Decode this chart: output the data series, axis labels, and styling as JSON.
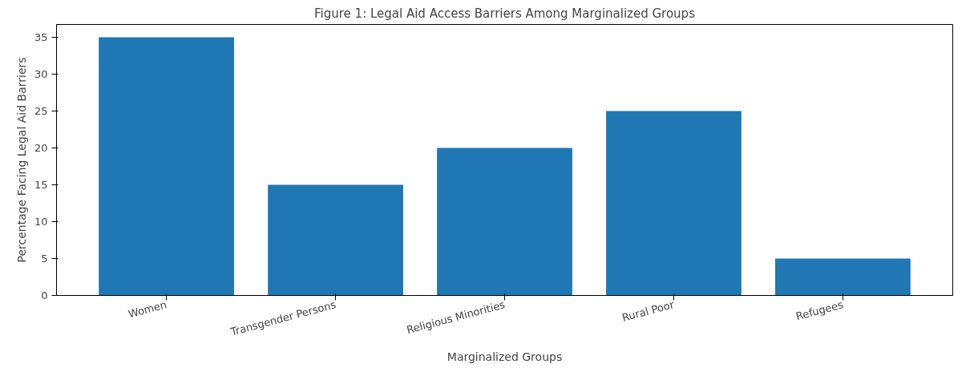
{
  "chart_data": {
    "type": "bar",
    "title": "Figure 1: Legal Aid Access Barriers Among Marginalized Groups",
    "xlabel": "Marginalized Groups",
    "ylabel": "Percentage Facing Legal Aid Barriers",
    "categories": [
      "Women",
      "Transgender Persons",
      "Religious Minorities",
      "Rural Poor",
      "Refugees"
    ],
    "values": [
      35,
      15,
      20,
      25,
      5
    ],
    "color": "#1f77b4",
    "ylim": [
      0,
      36.75
    ],
    "yticks": [
      0,
      5,
      10,
      15,
      20,
      25,
      30,
      35
    ],
    "grid": false
  }
}
